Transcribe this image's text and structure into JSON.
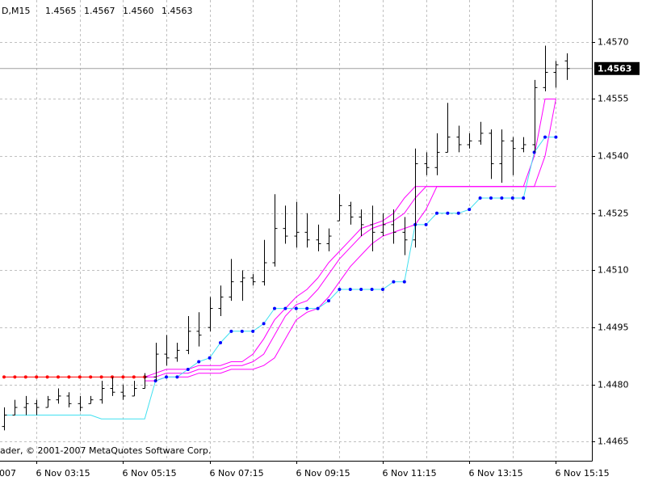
{
  "chart_data": {
    "type": "ohlc",
    "title": "D,M15",
    "quote": [
      "1.4565",
      "1.4567",
      "1.4560",
      "1.4563"
    ],
    "copyright": "ader, © 2001-2007 MetaQuotes Software Corp.",
    "x_partial_label": "007",
    "x": [
      null,
      null,
      null,
      "6 Nov 03:15",
      null,
      null,
      null,
      null,
      null,
      null,
      null,
      "6 Nov 05:15",
      null,
      null,
      null,
      null,
      null,
      null,
      null,
      "6 Nov 07:15",
      null,
      null,
      null,
      null,
      null,
      null,
      null,
      "6 Nov 09:15",
      null,
      null,
      null,
      null,
      null,
      null,
      null,
      "6 Nov 11:15",
      null,
      null,
      null,
      null,
      null,
      null,
      null,
      "6 Nov 13:15",
      null,
      null,
      null,
      null,
      null,
      null,
      null,
      "6 Nov 15:15",
      null
    ],
    "open": [
      1.4469,
      1.4472,
      1.4474,
      1.4475,
      1.4474,
      1.4476,
      1.4477,
      1.4475,
      1.4475,
      1.4476,
      1.4479,
      1.4478,
      1.4477,
      1.4479,
      1.4482,
      1.4488,
      1.4487,
      1.4489,
      1.4494,
      1.4495,
      1.45,
      1.4503,
      1.4507,
      1.4508,
      1.4507,
      1.4512,
      1.4521,
      1.4519,
      1.452,
      1.4518,
      1.4517,
      1.4523,
      1.4527,
      1.4524,
      1.4522,
      1.452,
      1.4522,
      1.452,
      1.4518,
      1.4538,
      1.4537,
      1.4541,
      1.4545,
      1.4543,
      1.4544,
      1.4546,
      1.4538,
      1.4544,
      1.4542,
      1.4543,
      1.4558,
      1.4562,
      1.4565
    ],
    "high": [
      1.4474,
      1.4476,
      1.4477,
      1.4476,
      1.4477,
      1.4479,
      1.4478,
      1.4477,
      1.4477,
      1.4481,
      1.4482,
      1.448,
      1.4481,
      1.4483,
      1.4491,
      1.4493,
      1.4491,
      1.4498,
      1.4499,
      1.4503,
      1.4506,
      1.4513,
      1.451,
      1.4509,
      1.4518,
      1.453,
      1.4527,
      1.4528,
      1.4525,
      1.4522,
      1.4521,
      1.453,
      1.4528,
      1.4526,
      1.4527,
      1.4525,
      1.4526,
      1.4524,
      1.4542,
      1.4541,
      1.4546,
      1.4554,
      1.4548,
      1.4546,
      1.4549,
      1.4547,
      1.4547,
      1.4545,
      1.4545,
      1.456,
      1.4569,
      1.4565,
      1.4567
    ],
    "low": [
      1.4468,
      1.4472,
      1.4472,
      1.4472,
      1.4474,
      1.4475,
      1.4474,
      1.4473,
      1.4475,
      1.4475,
      1.4477,
      1.4476,
      1.4477,
      1.4479,
      1.4481,
      1.4485,
      1.4486,
      1.4488,
      1.449,
      1.4494,
      1.4498,
      1.4502,
      1.4502,
      1.4506,
      1.4506,
      1.4511,
      1.4517,
      1.4516,
      1.4516,
      1.4515,
      1.4515,
      1.4523,
      1.4522,
      1.4519,
      1.4515,
      1.4519,
      1.4517,
      1.4514,
      1.4516,
      1.4535,
      1.4535,
      1.4541,
      1.4541,
      1.4542,
      1.4543,
      1.4534,
      1.4533,
      1.4535,
      1.4541,
      1.4541,
      1.4557,
      1.4558,
      1.456
    ],
    "close": [
      1.4472,
      1.4474,
      1.4475,
      1.4474,
      1.4476,
      1.4477,
      1.4475,
      1.4474,
      1.4476,
      1.4479,
      1.4478,
      1.4477,
      1.4479,
      1.4482,
      1.4488,
      1.4487,
      1.4489,
      1.4494,
      1.4493,
      1.45,
      1.4503,
      1.4507,
      1.4508,
      1.4507,
      1.4512,
      1.4521,
      1.4519,
      1.452,
      1.4518,
      1.4517,
      1.4519,
      1.4527,
      1.4524,
      1.4522,
      1.452,
      1.4522,
      1.452,
      1.4518,
      1.4538,
      1.4537,
      1.4541,
      1.4545,
      1.4543,
      1.4544,
      1.4546,
      1.4538,
      1.4544,
      1.4542,
      1.4543,
      1.4558,
      1.4562,
      1.4564,
      1.4563
    ],
    "bar_color": "#000000",
    "series": [
      {
        "type": "line",
        "color": "#ff00ff",
        "values": [
          null,
          null,
          null,
          null,
          null,
          null,
          null,
          null,
          null,
          null,
          null,
          null,
          null,
          1.4481,
          1.4481,
          1.4482,
          1.4482,
          1.4482,
          1.4483,
          1.4483,
          1.4483,
          1.4484,
          1.4484,
          1.4484,
          1.4485,
          1.4487,
          1.4492,
          1.4497,
          1.4499,
          1.45,
          1.4503,
          1.4507,
          1.4511,
          1.4514,
          1.4517,
          1.4519,
          1.452,
          1.4521,
          1.4522,
          1.4526,
          1.4532,
          1.4532,
          1.4532,
          1.4532,
          1.4532,
          1.4532,
          1.4532,
          1.4532,
          1.4532,
          1.4532,
          1.4532,
          1.4532,
          null
        ]
      },
      {
        "type": "line",
        "color": "#ff00ff",
        "values": [
          null,
          null,
          null,
          null,
          null,
          null,
          null,
          null,
          null,
          null,
          null,
          null,
          null,
          1.4482,
          1.4482,
          1.4483,
          1.4483,
          1.4483,
          1.4484,
          1.4484,
          1.4484,
          1.4485,
          1.4485,
          1.4486,
          1.4488,
          1.4493,
          1.4498,
          1.4501,
          1.4502,
          1.4505,
          1.4509,
          1.4513,
          1.4516,
          1.4519,
          1.4521,
          1.4522,
          1.4523,
          1.4525,
          1.4529,
          1.4532,
          1.4532,
          1.4532,
          1.4532,
          1.4532,
          1.4532,
          1.4532,
          1.4532,
          1.4532,
          1.4532,
          1.4532,
          1.454,
          1.4555,
          null
        ]
      },
      {
        "type": "line",
        "color": "#ff00ff",
        "values": [
          null,
          null,
          null,
          null,
          null,
          null,
          null,
          null,
          null,
          null,
          null,
          null,
          null,
          1.4482,
          1.4483,
          1.4484,
          1.4484,
          1.4484,
          1.4485,
          1.4485,
          1.4485,
          1.4486,
          1.4486,
          1.4488,
          1.4492,
          1.4497,
          1.45,
          1.4503,
          1.4505,
          1.4508,
          1.4512,
          1.4515,
          1.4518,
          1.4521,
          1.4522,
          1.4523,
          1.4525,
          1.4529,
          1.4532,
          1.4532,
          1.4532,
          1.4532,
          1.4532,
          1.4532,
          1.4532,
          1.4532,
          1.4532,
          1.4532,
          1.4532,
          1.454,
          1.4555,
          1.4555,
          null
        ]
      },
      {
        "type": "line",
        "color": "#40e0f0",
        "values": [
          1.4472,
          1.4472,
          1.4472,
          1.4472,
          1.4472,
          1.4472,
          1.4472,
          1.4472,
          1.4472,
          1.4471,
          1.4471,
          1.4471,
          1.4471,
          1.4471,
          1.4481,
          1.4482,
          1.4482,
          1.4484,
          1.4486,
          1.4487,
          1.4491,
          1.4494,
          1.4494,
          1.4494,
          1.4496,
          1.45,
          1.45,
          1.45,
          1.45,
          1.45,
          1.4502,
          1.4505,
          1.4505,
          1.4505,
          1.4505,
          1.4505,
          1.4507,
          1.4507,
          1.4522,
          1.4522,
          1.4525,
          1.4525,
          1.4525,
          1.4526,
          1.4529,
          1.4529,
          1.4529,
          1.4529,
          1.4529,
          1.4541,
          1.4545,
          1.4545,
          null
        ]
      },
      {
        "type": "dots",
        "color": "#0000ff",
        "values": [
          null,
          null,
          null,
          null,
          null,
          null,
          null,
          null,
          null,
          null,
          null,
          null,
          null,
          null,
          1.4481,
          1.4482,
          1.4482,
          1.4484,
          1.4486,
          1.4487,
          1.4491,
          1.4494,
          1.4494,
          1.4494,
          1.4496,
          1.45,
          1.45,
          1.45,
          1.45,
          1.45,
          1.4502,
          1.4505,
          1.4505,
          1.4505,
          1.4505,
          1.4505,
          1.4507,
          1.4507,
          1.4522,
          1.4522,
          1.4525,
          1.4525,
          1.4525,
          1.4526,
          1.4529,
          1.4529,
          1.4529,
          1.4529,
          1.4529,
          1.4541,
          1.4545,
          1.4545,
          null
        ]
      },
      {
        "type": "line",
        "color": "#ff0000",
        "values": [
          1.4482,
          1.4482,
          1.4482,
          1.4482,
          1.4482,
          1.4482,
          1.4482,
          1.4482,
          1.4482,
          1.4482,
          1.4482,
          1.4482,
          1.4482,
          1.4482,
          null,
          null,
          null,
          null,
          null,
          null,
          null,
          null,
          null,
          null,
          null,
          null,
          null,
          null,
          null,
          null,
          null,
          null,
          null,
          null,
          null,
          null,
          null,
          null,
          null,
          null,
          null,
          null,
          null,
          null,
          null,
          null,
          null,
          null,
          null,
          null,
          null,
          null,
          null
        ]
      },
      {
        "type": "dots",
        "color": "#ff0000",
        "values": [
          1.4482,
          1.4482,
          1.4482,
          1.4482,
          1.4482,
          1.4482,
          1.4482,
          1.4482,
          1.4482,
          1.4482,
          1.4482,
          1.4482,
          1.4482,
          1.4482,
          null,
          null,
          null,
          null,
          null,
          null,
          null,
          null,
          null,
          null,
          null,
          null,
          null,
          null,
          null,
          null,
          null,
          null,
          null,
          null,
          null,
          null,
          null,
          null,
          null,
          null,
          null,
          null,
          null,
          null,
          null,
          null,
          null,
          null,
          null,
          null,
          null,
          null,
          null
        ]
      }
    ],
    "current_price": 1.4563,
    "ylim": [
      1.446,
      1.4581
    ],
    "yticks": [
      1.4465,
      {
        "value": 1.448,
        "label": "1.4480"
      },
      1.4495,
      {
        "value": 1.451,
        "label": "1.4510"
      },
      1.4525,
      {
        "value": 1.454,
        "label": "1.4540"
      },
      1.4555,
      {
        "value": 1.457,
        "label": "1.4570"
      }
    ],
    "grid": true
  }
}
